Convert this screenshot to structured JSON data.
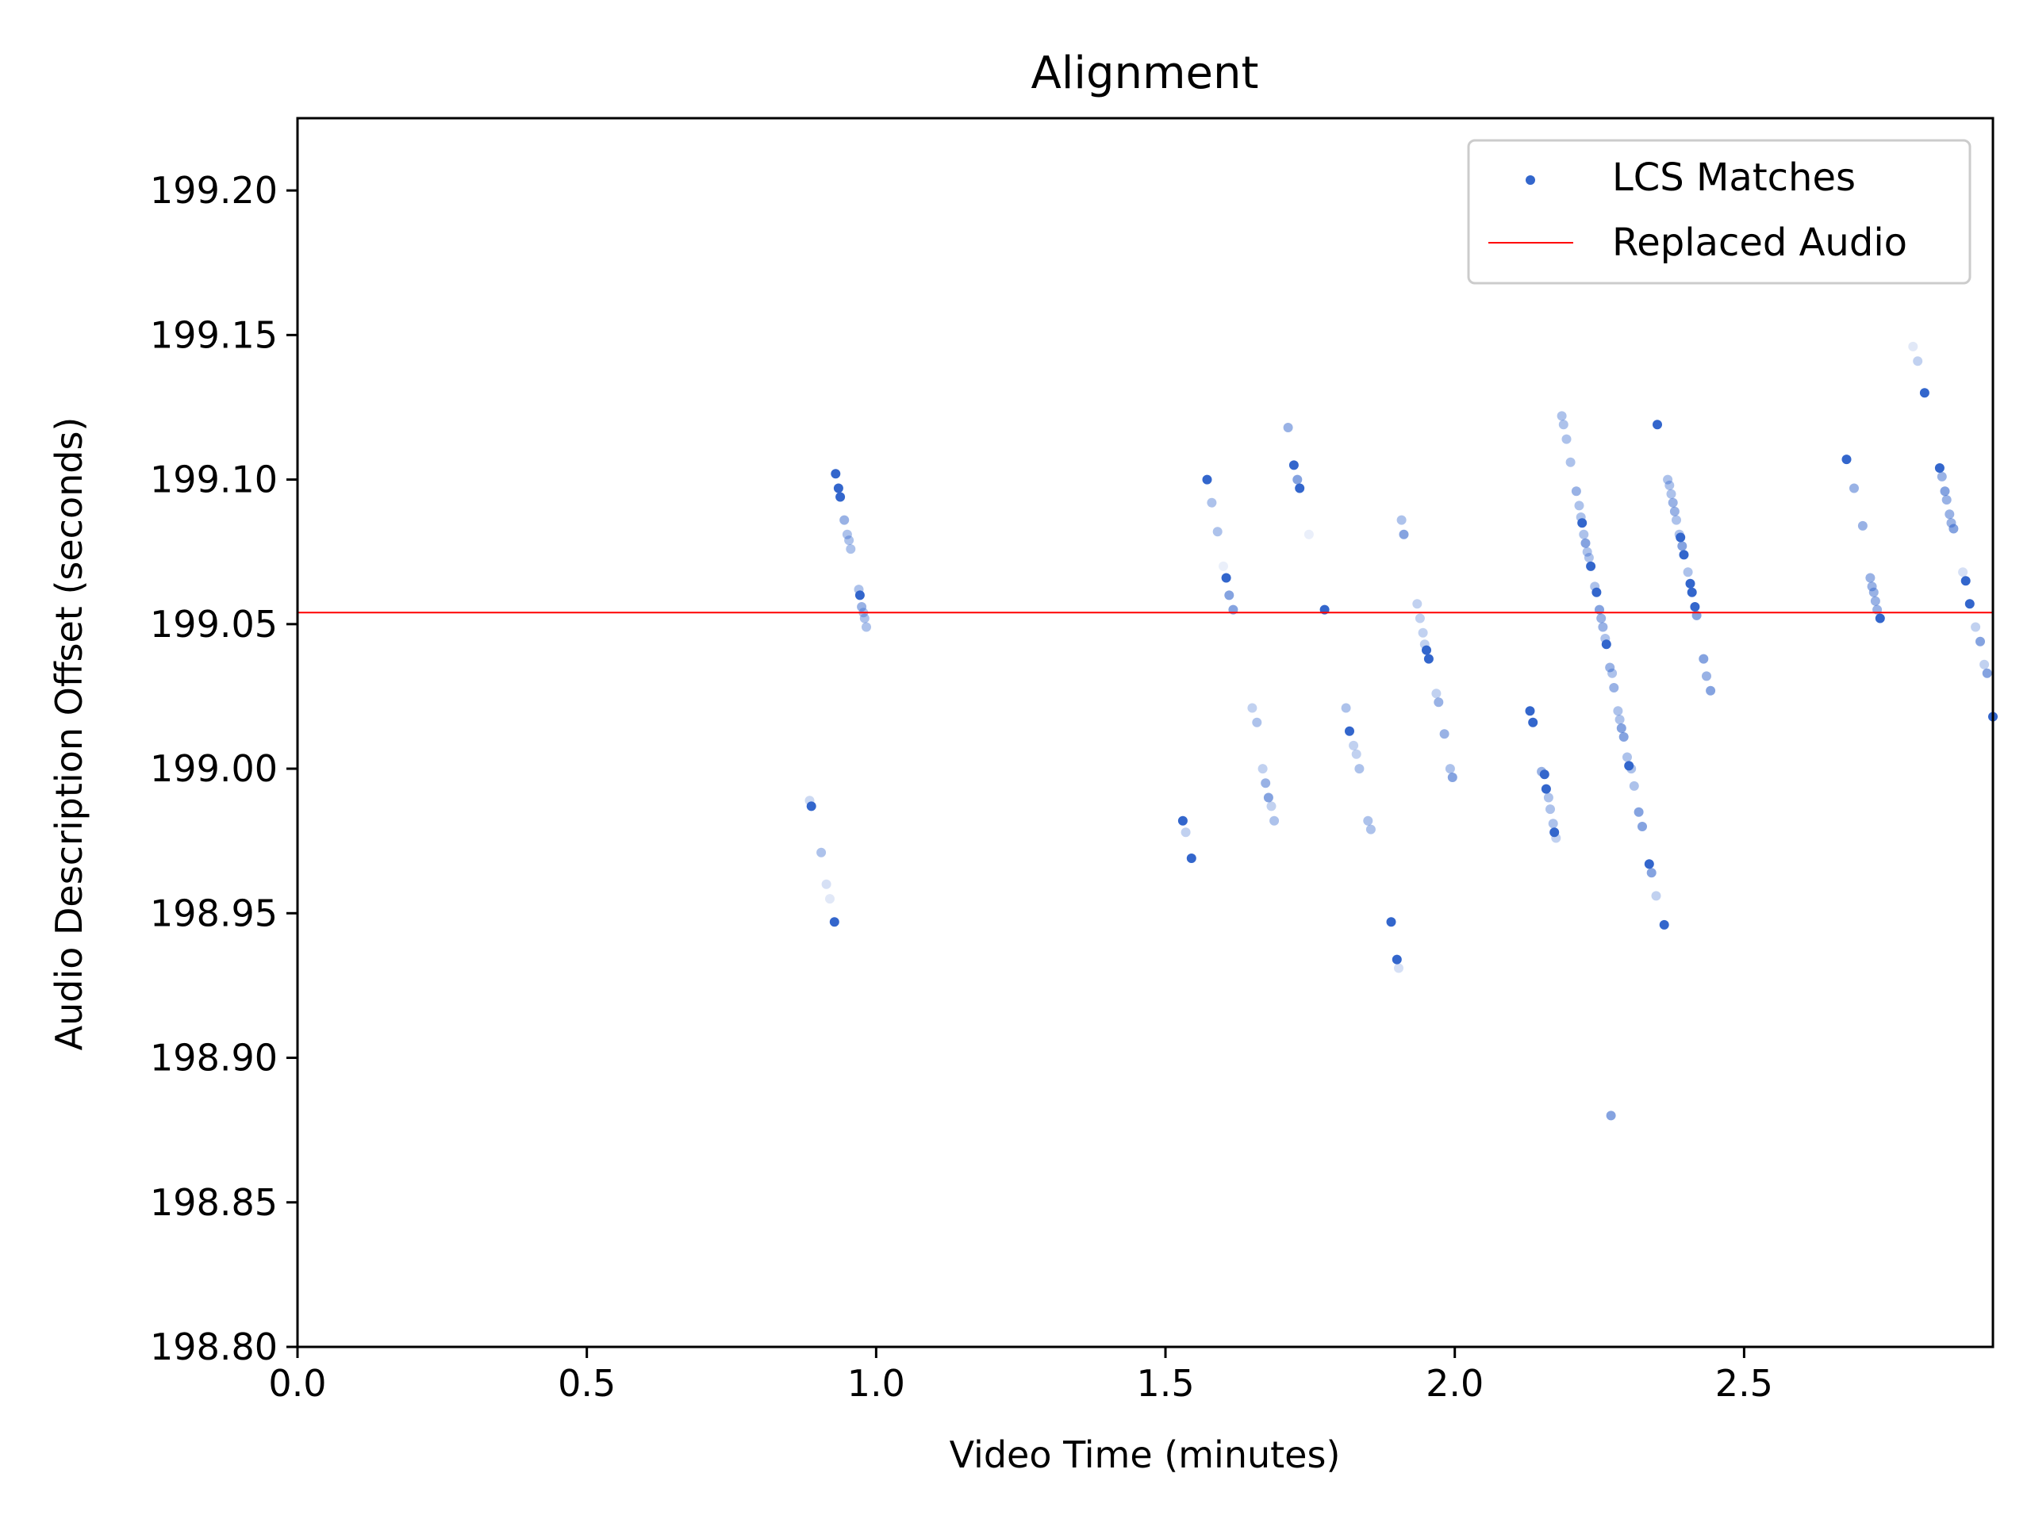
{
  "chart_data": {
    "type": "scatter",
    "title": "Alignment",
    "xlabel": "Video Time (minutes)",
    "ylabel": "Audio Description Offset (seconds)",
    "xlim": [
      0,
      2.93
    ],
    "ylim": [
      198.8,
      199.225
    ],
    "xticks": [
      "0.0",
      "0.5",
      "1.0",
      "1.5",
      "2.0",
      "2.5"
    ],
    "xtick_values": [
      0,
      0.5,
      1.0,
      1.5,
      2.0,
      2.5
    ],
    "yticks": [
      "198.80",
      "198.85",
      "198.90",
      "198.95",
      "199.00",
      "199.05",
      "199.10",
      "199.15",
      "199.20"
    ],
    "ytick_values": [
      198.8,
      198.85,
      198.9,
      198.95,
      199.0,
      199.05,
      199.1,
      199.15,
      199.2
    ],
    "grid": false,
    "legend_position": "top-right",
    "colors": {
      "points": "#3366cc",
      "line": "#ff0000"
    },
    "series": [
      {
        "name": "LCS Matches",
        "type": "scatter",
        "points": [
          [
            0.885,
            198.989,
            0.25
          ],
          [
            0.888,
            198.987,
            1.0
          ],
          [
            0.905,
            198.971,
            0.4
          ],
          [
            0.914,
            198.96,
            0.2
          ],
          [
            0.92,
            198.955,
            0.15
          ],
          [
            0.928,
            198.947,
            1.0
          ],
          [
            0.93,
            199.102,
            1.0
          ],
          [
            0.935,
            199.097,
            1.0
          ],
          [
            0.938,
            199.094,
            1.0
          ],
          [
            0.945,
            199.086,
            0.5
          ],
          [
            0.95,
            199.081,
            0.4
          ],
          [
            0.953,
            199.079,
            0.4
          ],
          [
            0.956,
            199.076,
            0.4
          ],
          [
            0.97,
            199.062,
            0.4
          ],
          [
            0.972,
            199.06,
            1.0
          ],
          [
            0.975,
            199.056,
            0.5
          ],
          [
            0.978,
            199.054,
            0.4
          ],
          [
            0.98,
            199.052,
            0.4
          ],
          [
            0.983,
            199.049,
            0.4
          ],
          [
            1.53,
            198.982,
            1.0
          ],
          [
            1.535,
            198.978,
            0.3
          ],
          [
            1.545,
            198.969,
            1.0
          ],
          [
            1.572,
            199.1,
            1.0
          ],
          [
            1.58,
            199.092,
            0.4
          ],
          [
            1.59,
            199.082,
            0.4
          ],
          [
            1.6,
            199.07,
            0.1
          ],
          [
            1.605,
            199.066,
            1.0
          ],
          [
            1.61,
            199.06,
            0.6
          ],
          [
            1.617,
            199.055,
            0.6
          ],
          [
            1.65,
            199.021,
            0.3
          ],
          [
            1.658,
            199.016,
            0.4
          ],
          [
            1.668,
            199.0,
            0.3
          ],
          [
            1.673,
            198.995,
            0.5
          ],
          [
            1.678,
            198.99,
            0.6
          ],
          [
            1.683,
            198.987,
            0.3
          ],
          [
            1.688,
            198.982,
            0.4
          ],
          [
            1.712,
            199.118,
            0.5
          ],
          [
            1.722,
            199.105,
            1.0
          ],
          [
            1.728,
            199.1,
            0.6
          ],
          [
            1.732,
            199.097,
            1.0
          ],
          [
            1.748,
            199.081,
            0.1
          ],
          [
            1.775,
            199.055,
            1.0
          ],
          [
            1.812,
            199.021,
            0.4
          ],
          [
            1.818,
            199.013,
            1.0
          ],
          [
            1.825,
            199.008,
            0.3
          ],
          [
            1.83,
            199.005,
            0.3
          ],
          [
            1.835,
            199.0,
            0.4
          ],
          [
            1.85,
            198.982,
            0.4
          ],
          [
            1.855,
            198.979,
            0.4
          ],
          [
            1.89,
            198.947,
            1.0
          ],
          [
            1.9,
            198.934,
            1.0
          ],
          [
            1.903,
            198.931,
            0.2
          ],
          [
            1.908,
            199.086,
            0.4
          ],
          [
            1.912,
            199.081,
            0.6
          ],
          [
            1.935,
            199.057,
            0.3
          ],
          [
            1.94,
            199.052,
            0.3
          ],
          [
            1.945,
            199.047,
            0.3
          ],
          [
            1.948,
            199.043,
            0.3
          ],
          [
            1.951,
            199.041,
            1.0
          ],
          [
            1.955,
            199.038,
            1.0
          ],
          [
            1.968,
            199.026,
            0.3
          ],
          [
            1.972,
            199.023,
            0.5
          ],
          [
            1.982,
            199.012,
            0.5
          ],
          [
            1.992,
            199.0,
            0.4
          ],
          [
            1.996,
            198.997,
            0.6
          ],
          [
            2.13,
            199.02,
            1.0
          ],
          [
            2.135,
            199.016,
            1.0
          ],
          [
            2.15,
            198.999,
            0.5
          ],
          [
            2.155,
            198.998,
            1.0
          ],
          [
            2.158,
            198.993,
            1.0
          ],
          [
            2.162,
            198.99,
            0.4
          ],
          [
            2.165,
            198.986,
            0.4
          ],
          [
            2.17,
            198.981,
            0.4
          ],
          [
            2.172,
            198.978,
            1.0
          ],
          [
            2.175,
            198.976,
            0.3
          ],
          [
            2.185,
            199.122,
            0.4
          ],
          [
            2.188,
            199.119,
            0.4
          ],
          [
            2.193,
            199.114,
            0.4
          ],
          [
            2.2,
            199.106,
            0.4
          ],
          [
            2.21,
            199.096,
            0.5
          ],
          [
            2.215,
            199.091,
            0.4
          ],
          [
            2.218,
            199.087,
            0.4
          ],
          [
            2.22,
            199.085,
            1.0
          ],
          [
            2.223,
            199.081,
            0.4
          ],
          [
            2.226,
            199.078,
            0.6
          ],
          [
            2.229,
            199.075,
            0.4
          ],
          [
            2.232,
            199.073,
            0.4
          ],
          [
            2.235,
            199.07,
            1.0
          ],
          [
            2.242,
            199.063,
            0.4
          ],
          [
            2.245,
            199.061,
            1.0
          ],
          [
            2.25,
            199.055,
            0.6
          ],
          [
            2.253,
            199.052,
            0.5
          ],
          [
            2.256,
            199.049,
            0.5
          ],
          [
            2.26,
            199.045,
            0.4
          ],
          [
            2.262,
            199.043,
            1.0
          ],
          [
            2.268,
            199.035,
            0.5
          ],
          [
            2.272,
            199.033,
            0.4
          ],
          [
            2.275,
            199.028,
            0.5
          ],
          [
            2.282,
            199.02,
            0.4
          ],
          [
            2.285,
            199.017,
            0.4
          ],
          [
            2.288,
            199.014,
            0.6
          ],
          [
            2.292,
            199.011,
            0.6
          ],
          [
            2.298,
            199.004,
            0.4
          ],
          [
            2.301,
            199.001,
            1.0
          ],
          [
            2.305,
            199.0,
            0.4
          ],
          [
            2.31,
            198.994,
            0.4
          ],
          [
            2.318,
            198.985,
            0.6
          ],
          [
            2.324,
            198.98,
            0.6
          ],
          [
            2.336,
            198.967,
            1.0
          ],
          [
            2.34,
            198.964,
            0.6
          ],
          [
            2.348,
            198.956,
            0.3
          ],
          [
            2.362,
            198.946,
            1.0
          ],
          [
            2.27,
            198.88,
            0.6
          ],
          [
            2.35,
            199.119,
            1.0
          ],
          [
            2.368,
            199.1,
            0.4
          ],
          [
            2.371,
            199.098,
            0.4
          ],
          [
            2.374,
            199.095,
            0.4
          ],
          [
            2.377,
            199.092,
            0.5
          ],
          [
            2.38,
            199.089,
            0.5
          ],
          [
            2.383,
            199.086,
            0.4
          ],
          [
            2.388,
            199.081,
            0.4
          ],
          [
            2.39,
            199.08,
            1.0
          ],
          [
            2.393,
            199.077,
            0.6
          ],
          [
            2.396,
            199.074,
            1.0
          ],
          [
            2.403,
            199.068,
            0.4
          ],
          [
            2.407,
            199.064,
            1.0
          ],
          [
            2.41,
            199.061,
            1.0
          ],
          [
            2.415,
            199.056,
            1.0
          ],
          [
            2.418,
            199.053,
            0.6
          ],
          [
            2.43,
            199.038,
            0.6
          ],
          [
            2.435,
            199.032,
            0.5
          ],
          [
            2.442,
            199.027,
            0.6
          ],
          [
            2.677,
            199.107,
            1.0
          ],
          [
            2.69,
            199.097,
            0.5
          ],
          [
            2.705,
            199.084,
            0.5
          ],
          [
            2.718,
            199.066,
            0.5
          ],
          [
            2.721,
            199.063,
            0.5
          ],
          [
            2.724,
            199.061,
            0.5
          ],
          [
            2.727,
            199.058,
            0.5
          ],
          [
            2.73,
            199.055,
            0.5
          ],
          [
            2.735,
            199.052,
            1.0
          ],
          [
            2.792,
            199.146,
            0.15
          ],
          [
            2.8,
            199.141,
            0.3
          ],
          [
            2.812,
            199.13,
            1.0
          ],
          [
            2.838,
            199.104,
            1.0
          ],
          [
            2.842,
            199.101,
            0.5
          ],
          [
            2.847,
            199.096,
            0.6
          ],
          [
            2.85,
            199.093,
            0.5
          ],
          [
            2.855,
            199.088,
            0.5
          ],
          [
            2.858,
            199.085,
            0.5
          ],
          [
            2.862,
            199.083,
            0.6
          ],
          [
            2.878,
            199.068,
            0.2
          ],
          [
            2.883,
            199.065,
            1.0
          ],
          [
            2.89,
            199.057,
            1.0
          ],
          [
            2.9,
            199.049,
            0.3
          ],
          [
            2.908,
            199.044,
            0.6
          ],
          [
            2.915,
            199.036,
            0.3
          ],
          [
            2.92,
            199.033,
            0.6
          ],
          [
            2.93,
            199.018,
            1.0
          ]
        ]
      },
      {
        "name": "Replaced Audio",
        "type": "hline",
        "y": 199.054
      }
    ]
  }
}
